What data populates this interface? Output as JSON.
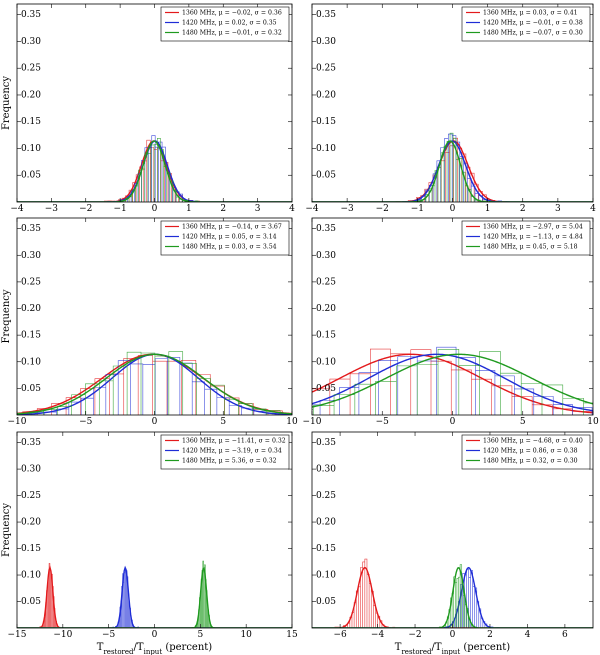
{
  "figure": {
    "ylabel": "Frequency",
    "xlabel_html": "T<tspan baseline-shift='sub' font-size='7'>restored</tspan>/T<tspan baseline-shift='sub' font-size='7'>input</tspan> (percent)",
    "xlabel_plain": "Trestored/Tinput (percent)"
  },
  "colors": {
    "1360": "#e31a1c",
    "1420": "#1f2dd6",
    "1480": "#1f9a1f"
  },
  "chart_data": [
    {
      "type": "histogram",
      "panel": "row1-left",
      "xlim": [
        -4,
        4
      ],
      "ylim": [
        0,
        0.37
      ],
      "xticks": [
        -4,
        -3,
        -2,
        -1,
        0,
        1,
        2,
        3,
        4
      ],
      "yticks": [
        0.05,
        0.1,
        0.15,
        0.2,
        0.25,
        0.3,
        0.35
      ],
      "ylabel": "Frequency",
      "legend_position": "top-right",
      "series": [
        {
          "name": "1360 MHz",
          "color": "#e31a1c",
          "mu": -0.02,
          "sigma": 0.36,
          "legend": "1360 MHz,  μ = −0.02,  σ = 0.36"
        },
        {
          "name": "1420 MHz",
          "color": "#1f2dd6",
          "mu": 0.02,
          "sigma": 0.35,
          "legend": "1420 MHz,  μ = 0.02,  σ = 0.35"
        },
        {
          "name": "1480 MHz",
          "color": "#1f9a1f",
          "mu": -0.01,
          "sigma": 0.32,
          "legend": "1480 MHz,  μ = −0.01,  σ = 0.32"
        }
      ]
    },
    {
      "type": "histogram",
      "panel": "row1-right",
      "xlim": [
        -4,
        4
      ],
      "ylim": [
        0,
        0.37
      ],
      "xticks": [
        -4,
        -3,
        -2,
        -1,
        0,
        1,
        2,
        3,
        4
      ],
      "yticks": [
        0.05,
        0.1,
        0.15,
        0.2,
        0.25,
        0.3,
        0.35
      ],
      "legend_position": "top-right",
      "series": [
        {
          "name": "1360 MHz",
          "color": "#e31a1c",
          "mu": 0.03,
          "sigma": 0.41,
          "legend": "1360 MHz,  μ = 0.03,  σ = 0.41"
        },
        {
          "name": "1420 MHz",
          "color": "#1f2dd6",
          "mu": -0.01,
          "sigma": 0.38,
          "legend": "1420 MHz,  μ = −0.01,  σ = 0.38"
        },
        {
          "name": "1480 MHz",
          "color": "#1f9a1f",
          "mu": -0.07,
          "sigma": 0.3,
          "legend": "1480 MHz,  μ = −0.07,  σ = 0.30"
        }
      ]
    },
    {
      "type": "histogram",
      "panel": "row2-left",
      "xlim": [
        -10,
        10
      ],
      "ylim": [
        0,
        0.37
      ],
      "xticks": [
        -10,
        -5,
        0,
        5,
        10
      ],
      "yticks": [
        0.05,
        0.1,
        0.15,
        0.2,
        0.25,
        0.3,
        0.35
      ],
      "ylabel": "Frequency",
      "legend_position": "top-right",
      "series": [
        {
          "name": "1360 MHz",
          "color": "#e31a1c",
          "mu": -0.14,
          "sigma": 3.67,
          "legend": "1360 MHz,  μ = −0.14,  σ = 3.67"
        },
        {
          "name": "1420 MHz",
          "color": "#1f2dd6",
          "mu": 0.05,
          "sigma": 3.14,
          "legend": "1420 MHz,  μ = 0.05,  σ = 3.14"
        },
        {
          "name": "1480 MHz",
          "color": "#1f9a1f",
          "mu": 0.03,
          "sigma": 3.54,
          "legend": "1480 MHz,  μ = 0.03,  σ = 3.54"
        }
      ]
    },
    {
      "type": "histogram",
      "panel": "row2-right",
      "xlim": [
        -10,
        10
      ],
      "ylim": [
        0,
        0.37
      ],
      "xticks": [
        -10,
        -5,
        0,
        5,
        10
      ],
      "yticks": [
        0.05,
        0.1,
        0.15,
        0.2,
        0.25,
        0.3,
        0.35
      ],
      "legend_position": "top-right",
      "series": [
        {
          "name": "1360 MHz",
          "color": "#e31a1c",
          "mu": -2.97,
          "sigma": 5.04,
          "legend": "1360 MHz,  μ = −2.97,  σ = 5.04"
        },
        {
          "name": "1420 MHz",
          "color": "#1f2dd6",
          "mu": -1.13,
          "sigma": 4.84,
          "legend": "1420 MHz,  μ = −1.13,  σ = 4.84"
        },
        {
          "name": "1480 MHz",
          "color": "#1f9a1f",
          "mu": 0.45,
          "sigma": 5.18,
          "legend": "1480 MHz,  μ = 0.45,  σ = 5.18"
        }
      ]
    },
    {
      "type": "histogram",
      "panel": "row3-left",
      "xlim": [
        -15,
        15
      ],
      "ylim": [
        0,
        0.37
      ],
      "xticks": [
        -15,
        -10,
        -5,
        0,
        5,
        10,
        15
      ],
      "yticks": [
        0.05,
        0.1,
        0.15,
        0.2,
        0.25,
        0.3,
        0.35
      ],
      "ylabel": "Frequency",
      "xlabel": "Trestored/Tinput (percent)",
      "legend_position": "top-right",
      "series": [
        {
          "name": "1360 MHz",
          "color": "#e31a1c",
          "mu": -11.41,
          "sigma": 0.32,
          "legend": "1360 MHz,  μ = −11.41,  σ = 0.32"
        },
        {
          "name": "1420 MHz",
          "color": "#1f2dd6",
          "mu": -3.19,
          "sigma": 0.34,
          "legend": "1420 MHz,  μ = −3.19,  σ = 0.34"
        },
        {
          "name": "1480 MHz",
          "color": "#1f9a1f",
          "mu": 5.36,
          "sigma": 0.32,
          "legend": "1480 MHz,  μ = 5.36,  σ = 0.32"
        }
      ]
    },
    {
      "type": "histogram",
      "panel": "row3-right",
      "xlim": [
        -7.5,
        7.5
      ],
      "ylim": [
        0,
        0.37
      ],
      "xticks": [
        -6,
        -4,
        -2,
        0,
        2,
        4,
        6
      ],
      "yticks": [
        0.05,
        0.1,
        0.15,
        0.2,
        0.25,
        0.3,
        0.35
      ],
      "xlabel": "Trestored/Tinput (percent)",
      "legend_position": "top-right",
      "series": [
        {
          "name": "1360 MHz",
          "color": "#e31a1c",
          "mu": -4.68,
          "sigma": 0.4,
          "legend": "1360 MHz,  μ = −4.68,  σ = 0.40"
        },
        {
          "name": "1420 MHz",
          "color": "#1f2dd6",
          "mu": 0.86,
          "sigma": 0.38,
          "legend": "1420 MHz,  μ = 0.86,  σ = 0.38"
        },
        {
          "name": "1480 MHz",
          "color": "#1f9a1f",
          "mu": 0.32,
          "sigma": 0.3,
          "legend": "1480 MHz,  μ = 0.32,  σ = 0.30"
        }
      ]
    }
  ]
}
